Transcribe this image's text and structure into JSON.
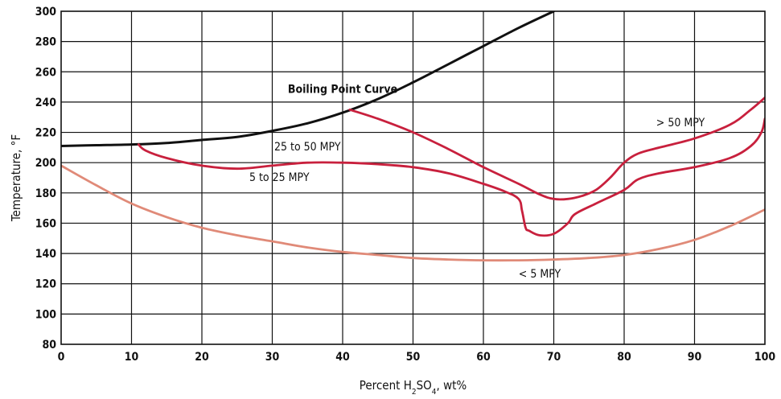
{
  "chart_data": {
    "type": "line",
    "xlabel_parts": {
      "pre": "Percent H",
      "sub1": "2",
      "mid": "SO",
      "sub2": "4",
      "post": ", wt%"
    },
    "ylabel": "Temperature, °F",
    "xlim": [
      0,
      100
    ],
    "ylim": [
      80,
      300
    ],
    "xticks": [
      0,
      10,
      20,
      30,
      40,
      50,
      60,
      70,
      80,
      90,
      100
    ],
    "yticks": [
      80,
      100,
      120,
      140,
      160,
      180,
      200,
      220,
      240,
      260,
      280,
      300
    ],
    "grid": true,
    "colors": {
      "boiling": "#111111",
      "iso": "#c8203d",
      "low": "#e08a78"
    },
    "series": [
      {
        "name": "Boiling Point Curve",
        "key": "boiling",
        "x": [
          0,
          5,
          10,
          15,
          20,
          25,
          30,
          35,
          40,
          45,
          50,
          55,
          60,
          65,
          70
        ],
        "y": [
          211,
          211.5,
          212,
          213,
          215,
          217,
          221,
          226,
          233,
          242,
          253,
          265,
          277,
          289,
          300
        ]
      },
      {
        "name": "",
        "key": "iso_upper",
        "x": [
          41,
          45,
          50,
          55,
          60,
          65,
          68,
          70,
          72,
          74,
          76,
          78,
          80,
          82,
          85,
          90,
          95,
          98,
          100
        ],
        "y": [
          235,
          229,
          220,
          209,
          197,
          186,
          179,
          176,
          176,
          178,
          182,
          190,
          200,
          206,
          210,
          216,
          225,
          235,
          243
        ]
      },
      {
        "name": "",
        "key": "iso_lower",
        "x": [
          11,
          12,
          15,
          20,
          25,
          30,
          35,
          40,
          45,
          50,
          55,
          60,
          63,
          65,
          65.5,
          66,
          66.5,
          68,
          70,
          72,
          73,
          76,
          80,
          82,
          85,
          90,
          95,
          98,
          99.5,
          100
        ],
        "y": [
          212,
          208,
          203,
          198,
          196,
          198,
          200,
          200,
          199,
          197,
          193,
          186,
          181,
          176,
          168,
          157,
          155,
          152,
          153,
          160,
          166,
          173,
          182,
          189,
          193,
          197,
          203,
          211,
          220,
          229
        ]
      },
      {
        "name": "",
        "key": "low",
        "x": [
          0,
          5,
          10,
          15,
          20,
          25,
          30,
          35,
          40,
          45,
          50,
          55,
          60,
          65,
          70,
          75,
          80,
          85,
          90,
          95,
          100
        ],
        "y": [
          198,
          185,
          173,
          164,
          157,
          152,
          148,
          144,
          141,
          139,
          137,
          136,
          135.5,
          135.5,
          136,
          137,
          139,
          143,
          149,
          158,
          169
        ]
      }
    ],
    "annotations": [
      {
        "text": "Boiling Point Curve",
        "x": 40,
        "y": 246,
        "style": "bold"
      },
      {
        "text": "25 to 50 MPY",
        "x": 35,
        "y": 208,
        "style": "normal"
      },
      {
        "text": "5 to 25 MPY",
        "x": 31,
        "y": 188,
        "style": "normal"
      },
      {
        "text": "> 50 MPY",
        "x": 88,
        "y": 224,
        "style": "normal"
      },
      {
        "text": "< 5 MPY",
        "x": 68,
        "y": 124,
        "style": "normal"
      }
    ]
  }
}
